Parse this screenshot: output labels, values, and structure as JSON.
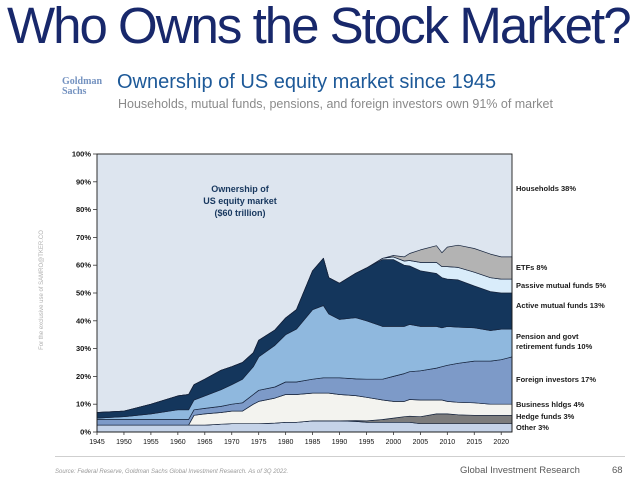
{
  "slide": {
    "title": "Who Owns the Stock Market?",
    "watermark": "For the exclusive use of SAMRO@TKER.CO",
    "footer_source": "Source: Federal Reserve, Goldman Sachs Global Investment Research. As of 3Q 2022.",
    "footer_right": "Global Investment Research",
    "page_number": "68"
  },
  "header": {
    "logo_line1": "Goldman",
    "logo_line2": "Sachs",
    "title": "Ownership of US equity market since 1945",
    "subtitle": "Households, mutual funds, pensions, and foreign investors own 91% of market"
  },
  "chart_data": {
    "type": "area",
    "stacked": true,
    "annotation": "Ownership of\nUS equity market\n($60 trillion)",
    "ylim": [
      0,
      100
    ],
    "outline_color": "#16243d",
    "x": [
      1945,
      1950,
      1955,
      1960,
      1962,
      1963,
      1965,
      1968,
      1970,
      1972,
      1974,
      1975,
      1978,
      1980,
      1982,
      1985,
      1987,
      1988,
      1990,
      1993,
      1995,
      1998,
      2000,
      2002,
      2003,
      2005,
      2008,
      2009,
      2010,
      2012,
      2015,
      2018,
      2020,
      2022
    ],
    "x_ticks": [
      1945,
      1950,
      1955,
      1960,
      1965,
      1970,
      1975,
      1980,
      1985,
      1990,
      1995,
      2000,
      2005,
      2010,
      2015,
      2020
    ],
    "y_ticks": [
      "0%",
      "10%",
      "20%",
      "30%",
      "40%",
      "50%",
      "60%",
      "70%",
      "80%",
      "90%",
      "100%"
    ],
    "background_series": {
      "name": "Households",
      "share": "38%",
      "color": "#dde5ef"
    },
    "series": [
      {
        "name": "Other",
        "share": "3%",
        "color": "#c5d3e8",
        "values": [
          2.5,
          2.5,
          2.5,
          2.5,
          2.5,
          2.5,
          2.5,
          2.8,
          3,
          3,
          3,
          3,
          3.2,
          3.5,
          3.5,
          4,
          4,
          4,
          4,
          3.8,
          3.5,
          3.5,
          3.5,
          3.5,
          3.5,
          3,
          3,
          3,
          3,
          3,
          3,
          3,
          3,
          3
        ]
      },
      {
        "name": "Hedge funds",
        "share": "3%",
        "color": "#7c7c7c",
        "values": [
          0,
          0,
          0,
          0,
          0,
          0,
          0,
          0,
          0,
          0,
          0,
          0,
          0,
          0,
          0,
          0,
          0,
          0,
          0,
          0.3,
          0.5,
          1,
          1.5,
          2,
          2.2,
          2.5,
          3.5,
          3.5,
          3.5,
          3.2,
          3,
          3,
          3,
          3
        ]
      },
      {
        "name": "Business hldgs",
        "share": "4%",
        "color": "#f3f3ef",
        "values": [
          0,
          0,
          0,
          0,
          0,
          3.5,
          4,
          4.2,
          4.5,
          4.5,
          7,
          8,
          9,
          10,
          10,
          10,
          10,
          10,
          9.5,
          9,
          8.5,
          7,
          6,
          5.5,
          6,
          6,
          5,
          5,
          4.5,
          4.5,
          4.5,
          4,
          4,
          4
        ]
      },
      {
        "name": "Foreign investors",
        "share": "17%",
        "color": "#7d9ac8",
        "values": [
          2,
          2,
          2,
          2,
          2,
          2,
          2,
          2.2,
          2.5,
          3,
          3.5,
          4,
          4,
          4.5,
          4.5,
          5,
          5.5,
          5.5,
          6,
          6,
          6.5,
          7.5,
          9,
          10,
          10,
          10.5,
          11.5,
          12,
          13,
          14,
          15,
          15.5,
          16,
          17
        ]
      },
      {
        "name": "Pension and govt retirement funds",
        "share": "10%",
        "color": "#8fb8de",
        "values": [
          0.5,
          1,
          2,
          3.5,
          3.5,
          3.5,
          4.5,
          6,
          7,
          8.5,
          10,
          12,
          15,
          17,
          19,
          25,
          26,
          23,
          21,
          22,
          21,
          19,
          18,
          17,
          17,
          16,
          15,
          14,
          14,
          13,
          12,
          11,
          11,
          10
        ]
      },
      {
        "name": "Active mutual funds",
        "share": "13%",
        "color": "#14365c",
        "values": [
          2,
          2,
          3.5,
          5,
          5.5,
          5.5,
          6,
          7,
          6.5,
          6,
          5,
          6,
          5.5,
          6,
          7,
          14,
          17,
          13,
          13,
          16,
          19,
          24,
          24,
          22,
          21,
          20,
          19,
          18,
          17,
          17,
          15,
          14,
          13,
          13
        ]
      },
      {
        "name": "Passive mutual funds",
        "share": "5%",
        "color": "#d9ecfa",
        "values": [
          0,
          0,
          0,
          0,
          0,
          0,
          0,
          0,
          0,
          0,
          0,
          0,
          0,
          0,
          0,
          0,
          0,
          0,
          0,
          0,
          0,
          0.5,
          1,
          1.5,
          2,
          3,
          4,
          4,
          4.5,
          4.5,
          5,
          5,
          5,
          5
        ]
      },
      {
        "name": "ETFs",
        "share": "8%",
        "color": "#b3b3b3",
        "values": [
          0,
          0,
          0,
          0,
          0,
          0,
          0,
          0,
          0,
          0,
          0,
          0,
          0,
          0,
          0,
          0,
          0,
          0,
          0,
          0,
          0,
          0,
          0.5,
          1.5,
          2.5,
          4.5,
          6,
          5,
          7,
          8,
          8.5,
          8.5,
          8,
          8
        ]
      }
    ],
    "right_labels": [
      "Households 38%",
      "ETFs 8%",
      "Passive mutual funds 5%",
      "Active mutual funds 13%",
      "Pension and govt\nretirement funds 10%",
      "Foreign investors 17%",
      "Business hldgs 4%",
      "Hedge funds 3%",
      "Other 3%"
    ]
  }
}
